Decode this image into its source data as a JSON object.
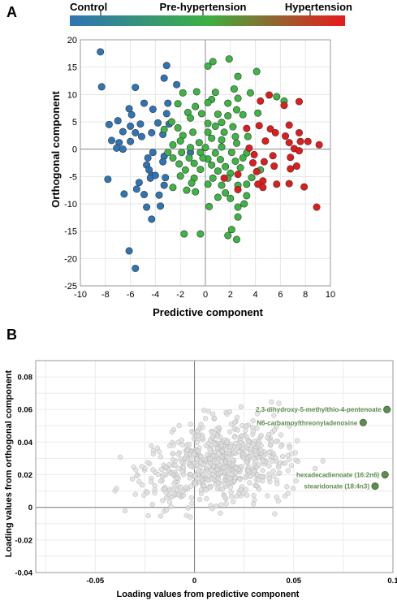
{
  "panels": {
    "a_letter": "A",
    "b_letter": "B"
  },
  "chart_data": [
    {
      "type": "scatter",
      "title": "",
      "xlabel": "Predictive component",
      "ylabel": "Orthogonal component",
      "xlim": [
        -10,
        10
      ],
      "ylim": [
        -25,
        20
      ],
      "xticks": [
        -10,
        -8,
        -6,
        -4,
        -2,
        0,
        2,
        4,
        6,
        8,
        10
      ],
      "yticks": [
        -25,
        -20,
        -15,
        -10,
        -5,
        0,
        5,
        10,
        15,
        20
      ],
      "grid": true,
      "colorbar": {
        "labels": [
          "Control",
          "Pre-hypertension",
          "Hypertension"
        ],
        "colors": [
          "#2f74b5",
          "#3cb043",
          "#e8191c"
        ]
      },
      "series": [
        {
          "name": "Control",
          "color": "#2e75b6",
          "points": [
            [
              -8.4,
              17.8
            ],
            [
              -8.3,
              11.4
            ],
            [
              -5.6,
              11.3
            ],
            [
              -3.3,
              13
            ],
            [
              -3.1,
              15.3
            ],
            [
              -2.3,
              11.8
            ],
            [
              -4.9,
              8.4
            ],
            [
              -4.2,
              7.3
            ],
            [
              -6.1,
              7.4
            ],
            [
              -3,
              8.4
            ],
            [
              -5.9,
              6.3
            ],
            [
              -7,
              5.2
            ],
            [
              -7.7,
              4.5
            ],
            [
              -6,
              4.2
            ],
            [
              -5.2,
              4.6
            ],
            [
              -3.8,
              4.8
            ],
            [
              -3.1,
              6.5
            ],
            [
              -2.9,
              4.6
            ],
            [
              -5.6,
              3
            ],
            [
              -6.6,
              3.2
            ],
            [
              -4.3,
              3
            ],
            [
              -5.1,
              2.3
            ],
            [
              -3.4,
              2.7
            ],
            [
              -7.5,
              1.6
            ],
            [
              -6.9,
              1.2
            ],
            [
              -6,
              1.4
            ],
            [
              -7.1,
              0.2
            ],
            [
              -6.6,
              0
            ],
            [
              -4.2,
              -0.6
            ],
            [
              -3.3,
              -1.3
            ],
            [
              -4.6,
              -1.6
            ],
            [
              -3.4,
              -2.3
            ],
            [
              -4.7,
              -2.9
            ],
            [
              -4.5,
              -3.8
            ],
            [
              -4.3,
              -4.8
            ],
            [
              -4.4,
              -5.3
            ],
            [
              -4,
              -4.8
            ],
            [
              -7.8,
              -5.5
            ],
            [
              -3.2,
              -5.2
            ],
            [
              -5.3,
              -6.1
            ],
            [
              -5.5,
              -7.3
            ],
            [
              -3.3,
              -6.6
            ],
            [
              -6.5,
              -8.2
            ],
            [
              -4.9,
              -8.3
            ],
            [
              -3.7,
              -8.4
            ],
            [
              -3.6,
              -10.4
            ],
            [
              -4.7,
              -10.6
            ],
            [
              -4.3,
              -12.8
            ],
            [
              -6.1,
              -18.6
            ],
            [
              -5.6,
              -21.8
            ],
            [
              -1.2,
              -0.6
            ]
          ]
        },
        {
          "name": "Pre-hypertension",
          "color": "#3cb543",
          "points": [
            [
              0.6,
              16
            ],
            [
              0.2,
              15.2
            ],
            [
              1.9,
              16.5
            ],
            [
              2.6,
              13.3
            ],
            [
              2.3,
              11
            ],
            [
              4.1,
              14.2
            ],
            [
              -1.8,
              10.3
            ],
            [
              -0.7,
              10.5
            ],
            [
              0.8,
              10.4
            ],
            [
              0.5,
              9.1
            ],
            [
              3.6,
              10.3
            ],
            [
              5.7,
              9.6
            ],
            [
              6.3,
              8.8
            ],
            [
              -2.2,
              8.3
            ],
            [
              -0.8,
              7.8
            ],
            [
              0.2,
              8.5
            ],
            [
              1.8,
              8.4
            ],
            [
              2.6,
              9.3
            ],
            [
              -1.4,
              6.7
            ],
            [
              -0.3,
              6.5
            ],
            [
              1,
              6.4
            ],
            [
              1.8,
              6.1
            ],
            [
              2.5,
              7.2
            ],
            [
              3,
              6.3
            ],
            [
              4.2,
              6.6
            ],
            [
              -2.7,
              5
            ],
            [
              -1.2,
              5.7
            ],
            [
              0.2,
              4.7
            ],
            [
              1.3,
              4.9
            ],
            [
              2.2,
              4.1
            ],
            [
              -3.3,
              3.6
            ],
            [
              -2.2,
              3.9
            ],
            [
              -1.8,
              2.5
            ],
            [
              -1,
              3.1
            ],
            [
              0.2,
              3.1
            ],
            [
              1.5,
              3.1
            ],
            [
              2.4,
              2.3
            ],
            [
              3.4,
              2.3
            ],
            [
              -2,
              1.5
            ],
            [
              -0.5,
              1.2
            ],
            [
              0.5,
              2
            ],
            [
              1.3,
              1.7
            ],
            [
              2.5,
              1.1
            ],
            [
              -2.6,
              0.8
            ],
            [
              -1.2,
              0.3
            ],
            [
              0,
              0.3
            ],
            [
              1.3,
              0.4
            ],
            [
              -3,
              -0.6
            ],
            [
              -1.9,
              -0.6
            ],
            [
              -0.4,
              -0.6
            ],
            [
              0.8,
              -0.7
            ],
            [
              2.1,
              -0.6
            ],
            [
              3.3,
              -0.7
            ],
            [
              -2.6,
              -1.6
            ],
            [
              -1.3,
              -1.6
            ],
            [
              0.2,
              -1.8
            ],
            [
              1.2,
              -1.9
            ],
            [
              2.4,
              -2.2
            ],
            [
              -2.1,
              -2.7
            ],
            [
              -0.9,
              -2.6
            ],
            [
              0.5,
              -2.9
            ],
            [
              1.6,
              -3.2
            ],
            [
              2.8,
              -3.4
            ],
            [
              -1.6,
              -3.8
            ],
            [
              -0.4,
              -3.7
            ],
            [
              1,
              -4
            ],
            [
              2,
              -4.4
            ],
            [
              -2,
              -4.9
            ],
            [
              -0.9,
              -5.3
            ],
            [
              0.6,
              -5.3
            ],
            [
              1.8,
              -5.3
            ],
            [
              3.7,
              -5.2
            ],
            [
              -1.1,
              -6.2
            ],
            [
              0.2,
              -6.4
            ],
            [
              1.3,
              -6.6
            ],
            [
              2.6,
              -6.6
            ],
            [
              -1.5,
              -7.5
            ],
            [
              -0.8,
              -7.8
            ],
            [
              1.6,
              -8
            ],
            [
              3.3,
              -8.5
            ],
            [
              2,
              -9
            ],
            [
              3.1,
              -10
            ],
            [
              2.6,
              -10.6
            ],
            [
              2.6,
              -12.4
            ],
            [
              2.1,
              -14.7
            ],
            [
              1.8,
              -15.8
            ],
            [
              2.5,
              -16.5
            ],
            [
              -1.7,
              -15.5
            ],
            [
              -0.4,
              -15.5
            ],
            [
              3.3,
              -6.4
            ],
            [
              -2.6,
              -7
            ],
            [
              0.3,
              -10.5
            ],
            [
              4.4,
              -3.8
            ],
            [
              3,
              -1.6
            ],
            [
              0.8,
              4.2
            ],
            [
              -0.2,
              -1.6
            ],
            [
              1,
              -8.8
            ]
          ]
        },
        {
          "name": "Hypertension",
          "color": "#e21b1b",
          "points": [
            [
              4.4,
              8.8
            ],
            [
              5.1,
              9.9
            ],
            [
              6.3,
              8
            ],
            [
              7.5,
              8.7
            ],
            [
              4.3,
              4.3
            ],
            [
              5.2,
              3.7
            ],
            [
              6.7,
              4.4
            ],
            [
              7.5,
              3
            ],
            [
              3.3,
              3.8
            ],
            [
              5.6,
              3
            ],
            [
              6.4,
              2.4
            ],
            [
              4.8,
              1.5
            ],
            [
              6.7,
              1.2
            ],
            [
              7.6,
              1.4
            ],
            [
              8.2,
              1.4
            ],
            [
              9.1,
              0.8
            ],
            [
              3.5,
              0.2
            ],
            [
              7.1,
              0.1
            ],
            [
              7.5,
              -0.3
            ],
            [
              6.8,
              -1.5
            ],
            [
              3.9,
              -1
            ],
            [
              5.4,
              -1.2
            ],
            [
              4.7,
              -2.3
            ],
            [
              3.8,
              -2.5
            ],
            [
              5.5,
              -3.1
            ],
            [
              4.1,
              -4.1
            ],
            [
              2.6,
              -4.6
            ],
            [
              1.5,
              -5.3
            ],
            [
              4.6,
              -5.8
            ],
            [
              6.8,
              -3.6
            ],
            [
              7.3,
              -3.1
            ],
            [
              4.2,
              -6.4
            ],
            [
              5.7,
              -6.4
            ],
            [
              6.7,
              -6.3
            ],
            [
              7.9,
              -6.9
            ],
            [
              4.6,
              -7
            ],
            [
              8.9,
              -10.6
            ],
            [
              2.6,
              -7.4
            ]
          ]
        }
      ]
    },
    {
      "type": "scatter",
      "title": "",
      "xlabel": "Loading values from predictive component",
      "ylabel": "Loading values from orthogonal component",
      "xlim": [
        -0.08,
        0.1
      ],
      "ylim": [
        -0.04,
        0.09
      ],
      "xticks": [
        -0.05,
        0,
        0.05,
        0.1
      ],
      "xtick_labels": [
        "-0.05",
        "0",
        "0.05",
        "0.1"
      ],
      "yticks": [
        -0.04,
        -0.02,
        0,
        0.02,
        0.04,
        0.06,
        0.08
      ],
      "ytick_labels": [
        "-0.04",
        "-0.02",
        "0",
        "0.02",
        "0.04",
        "0.06",
        "0.08"
      ],
      "grid": true,
      "background_points": {
        "color": "#dcdcdc",
        "count": 650
      },
      "highlighted": [
        {
          "label": "2,3-dihydroxy-5-methylthio-4-pentenoate",
          "x": 0.097,
          "y": 0.06,
          "color": "#5e8c4f"
        },
        {
          "label": "N6-carbamoylthreonyladenosine",
          "x": 0.085,
          "y": 0.052,
          "color": "#5e8c4f"
        },
        {
          "label": "hexadecadienoate (16:2n6)",
          "x": 0.096,
          "y": 0.02,
          "color": "#5e8c4f"
        },
        {
          "label": "stearidonate (18:4n3)",
          "x": 0.091,
          "y": 0.013,
          "color": "#5e8c4f"
        }
      ]
    }
  ]
}
